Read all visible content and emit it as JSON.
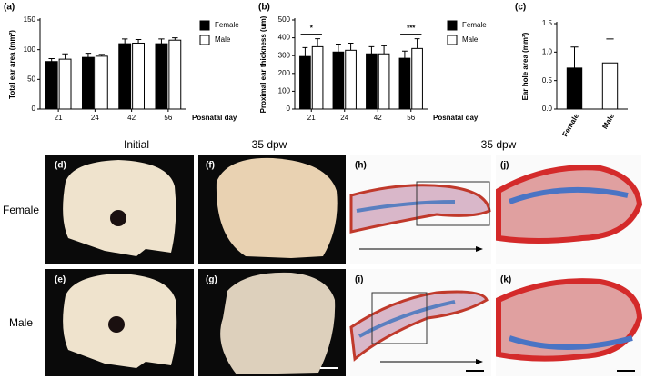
{
  "chart_data": [
    {
      "type": "bar",
      "title": "(a)",
      "ylabel": "Total ear area (mm²)",
      "xlabel": "Posnatal day",
      "categories": [
        "21",
        "24",
        "42",
        "56"
      ],
      "series": [
        {
          "name": "Female",
          "color": "#000000",
          "values": [
            80,
            87,
            110,
            110
          ],
          "errors": [
            5,
            7,
            8,
            8
          ]
        },
        {
          "name": "Male",
          "color": "#ffffff",
          "values": [
            84,
            89,
            111,
            116
          ],
          "errors": [
            9,
            3,
            6,
            4
          ]
        }
      ],
      "ylim": [
        0,
        150
      ],
      "yticks": [
        0,
        50,
        100,
        150
      ],
      "legend": "right"
    },
    {
      "type": "bar",
      "title": "(b)",
      "ylabel": "Proximal ear thickness (um)",
      "xlabel": "Posnatal day",
      "categories": [
        "21",
        "24",
        "42",
        "56"
      ],
      "series": [
        {
          "name": "Female",
          "color": "#000000",
          "values": [
            295,
            320,
            310,
            285
          ],
          "errors": [
            50,
            45,
            40,
            40
          ]
        },
        {
          "name": "Male",
          "color": "#ffffff",
          "values": [
            350,
            330,
            310,
            340
          ],
          "errors": [
            45,
            40,
            45,
            55
          ]
        }
      ],
      "annotations": [
        {
          "text": "*",
          "x": "21"
        },
        {
          "text": "***",
          "x": "56"
        }
      ],
      "ylim": [
        0,
        500
      ],
      "yticks": [
        0,
        100,
        200,
        300,
        400,
        500
      ],
      "legend": "right"
    },
    {
      "type": "bar",
      "title": "(c)",
      "ylabel": "Ear hole area (mm²)",
      "categories": [
        "Female",
        "Male"
      ],
      "series": [
        {
          "colors": [
            "#000000",
            "#ffffff"
          ],
          "values": [
            0.72,
            0.81
          ],
          "errors": [
            0.37,
            0.42
          ]
        }
      ],
      "ylim": [
        0,
        1.5
      ],
      "yticks": [
        {
          "value": 0,
          "label": "0.0"
        },
        0.5,
        {
          "value": 1,
          "label": "1.0"
        },
        1.5
      ]
    }
  ],
  "figure": {
    "column_titles": [
      "Initial",
      "35 dpw",
      "35 dpw"
    ],
    "row_titles": [
      "Female",
      "Male"
    ],
    "panel_labels": [
      "(d)",
      "(e)",
      "(f)",
      "(g)",
      "(h)",
      "(i)",
      "(j)",
      "(k)"
    ]
  }
}
